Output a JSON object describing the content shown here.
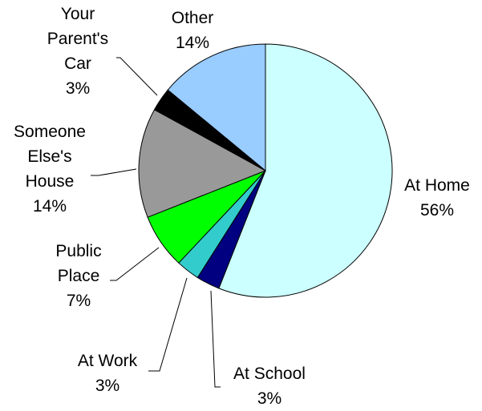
{
  "chart_data": {
    "type": "pie",
    "title": "",
    "slices": [
      {
        "label": "At Home",
        "value": 56,
        "value_text": "56%",
        "color": "#CCFFFF"
      },
      {
        "label": "At School",
        "value": 3,
        "value_text": "3%",
        "color": "#000080"
      },
      {
        "label": "At Work",
        "value": 3,
        "value_text": "3%",
        "color": "#33CCCC"
      },
      {
        "label": "Public Place",
        "value": 7,
        "value_text": "7%",
        "color": "#00FF00"
      },
      {
        "label": "Someone Else's House",
        "value": 14,
        "value_text": "14%",
        "color": "#999999"
      },
      {
        "label": "Your Parent's Car",
        "value": 3,
        "value_text": "3%",
        "color": "#000000"
      },
      {
        "label": "Other",
        "value": 14,
        "value_text": "14%",
        "color": "#99CCFF"
      }
    ],
    "start_angle": "12 o'clock",
    "direction": "clockwise",
    "legend": "none"
  }
}
